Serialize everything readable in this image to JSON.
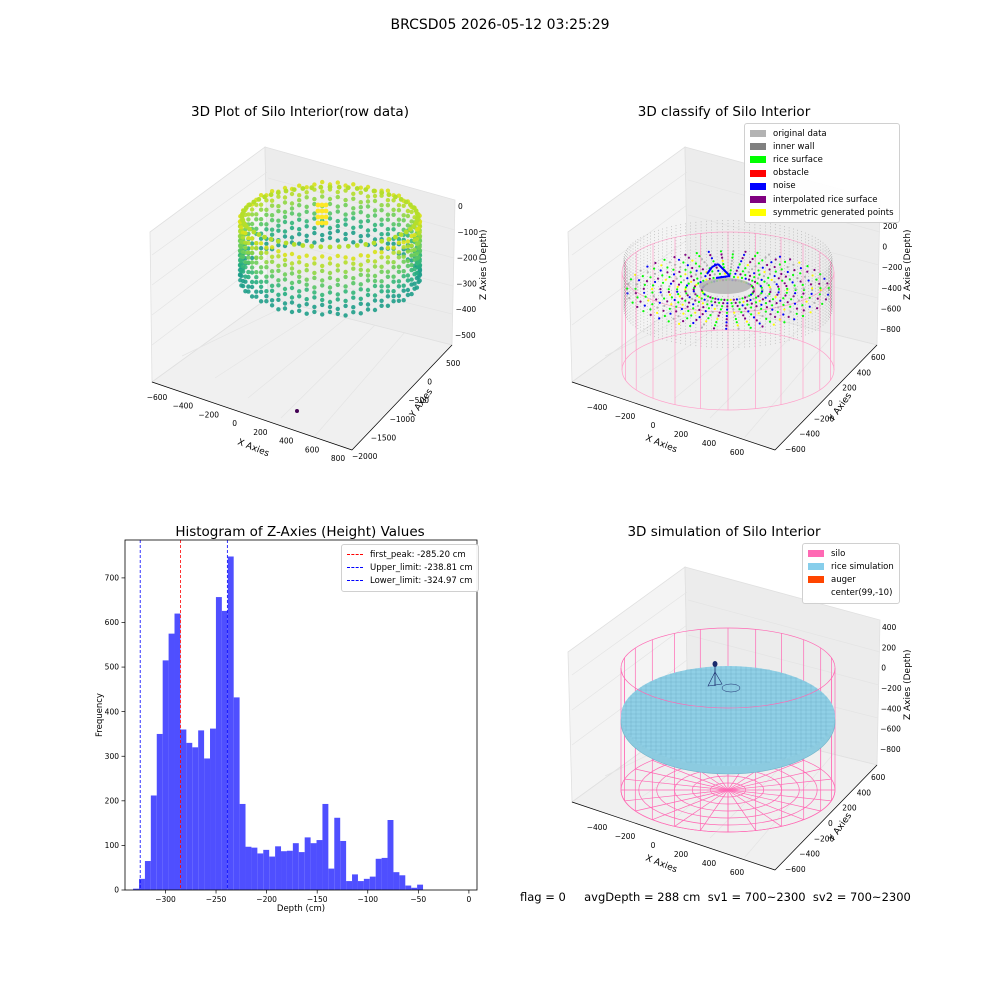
{
  "suptitle": "BRCSD05 2026-05-12 03:25:29",
  "status_line": "flag = 0     avgDepth = 288 cm  sv1 = 700~2300  sv2 = 700~2300",
  "chart_data": [
    {
      "type": "scatter",
      "title": "3D Plot of Silo Interior(row data)",
      "xlabel": "X Axies",
      "ylabel": "Y Axies",
      "zlabel": "Z Axies (Depth)",
      "xticks": [
        "−600",
        "−400",
        "−200",
        "0",
        "200",
        "400",
        "600",
        "800"
      ],
      "yticks": [
        "500",
        "0",
        "−500",
        "−1000",
        "−1500",
        "−2000"
      ],
      "zticks": [
        "0",
        "−100",
        "−200",
        "−300",
        "−400",
        "−500"
      ],
      "xlim": [
        -600,
        800
      ],
      "ylim": [
        -2000,
        500
      ],
      "zlim": [
        -500,
        0
      ],
      "colormap": "viridis"
    },
    {
      "type": "scatter",
      "title": "3D classify of Silo Interior",
      "xlabel": "X Axies",
      "ylabel": "Y Axies",
      "zlabel": "Z Axies (Depth)",
      "xticks": [
        "−400",
        "−200",
        "0",
        "200",
        "400",
        "600"
      ],
      "yticks": [
        "600",
        "400",
        "200",
        "0",
        "−200",
        "−400",
        "−600"
      ],
      "zticks": [
        "200",
        "0",
        "−200",
        "−400",
        "−600",
        "−800"
      ],
      "legend": [
        {
          "label": "original data",
          "color": "#b3b3b3"
        },
        {
          "label": "inner wall",
          "color": "#808080"
        },
        {
          "label": "rice surface",
          "color": "#00ff00"
        },
        {
          "label": "obstacle",
          "color": "#ff0000"
        },
        {
          "label": "noise",
          "color": "#0000ff"
        },
        {
          "label": "interpolated rice surface",
          "color": "#800080"
        },
        {
          "label": "symmetric generated points",
          "color": "#ffff00"
        }
      ]
    },
    {
      "type": "bar",
      "title": "Histogram of Z-Axies (Height) Values",
      "xlabel": "Depth (cm)",
      "ylabel": "Frequency",
      "xlim": [
        -340,
        8
      ],
      "ylim": [
        0,
        785
      ],
      "xticks": [
        -300,
        -250,
        -200,
        -150,
        -100,
        -50,
        0
      ],
      "yticks": [
        0,
        100,
        200,
        300,
        400,
        500,
        600,
        700
      ],
      "bin_start": -332,
      "bin_width": 5.85,
      "values": [
        3,
        25,
        65,
        212,
        350,
        515,
        575,
        620,
        360,
        330,
        320,
        358,
        295,
        362,
        657,
        626,
        748,
        432,
        193,
        97,
        95,
        82,
        90,
        75,
        98,
        87,
        88,
        105,
        85,
        118,
        105,
        112,
        193,
        48,
        162,
        110,
        20,
        35,
        20,
        25,
        30,
        70,
        72,
        157,
        40,
        33,
        10,
        5,
        12
      ],
      "bar_color": "#4b4bff",
      "vlines": [
        {
          "label": "first_peak: -285.20 cm",
          "x": -285.2,
          "color": "#ff0000"
        },
        {
          "label": "Upper_limit: -238.81 cm",
          "x": -238.81,
          "color": "#0000ff"
        },
        {
          "label": "Lower_limit: -324.97 cm",
          "x": -324.97,
          "color": "#0000ff"
        }
      ],
      "legend_position": "top-right"
    },
    {
      "type": "scatter",
      "title": "3D simulation of Silo Interior",
      "xlabel": "X Axies",
      "ylabel": "Y Axies",
      "zlabel": "Z Axies (Depth)",
      "xticks": [
        "−400",
        "−200",
        "0",
        "200",
        "400",
        "600"
      ],
      "yticks": [
        "600",
        "400",
        "200",
        "0",
        "−200",
        "−400",
        "−600"
      ],
      "zticks": [
        "400",
        "200",
        "0",
        "−200",
        "−400",
        "−600",
        "−800"
      ],
      "legend": [
        {
          "label": "silo",
          "color": "#ff69b4"
        },
        {
          "label": "rice simulation",
          "color": "#87ceeb"
        },
        {
          "label": "auger",
          "color": "#ff4500"
        },
        {
          "label": "center(99,-10)",
          "color": "none"
        }
      ]
    }
  ]
}
